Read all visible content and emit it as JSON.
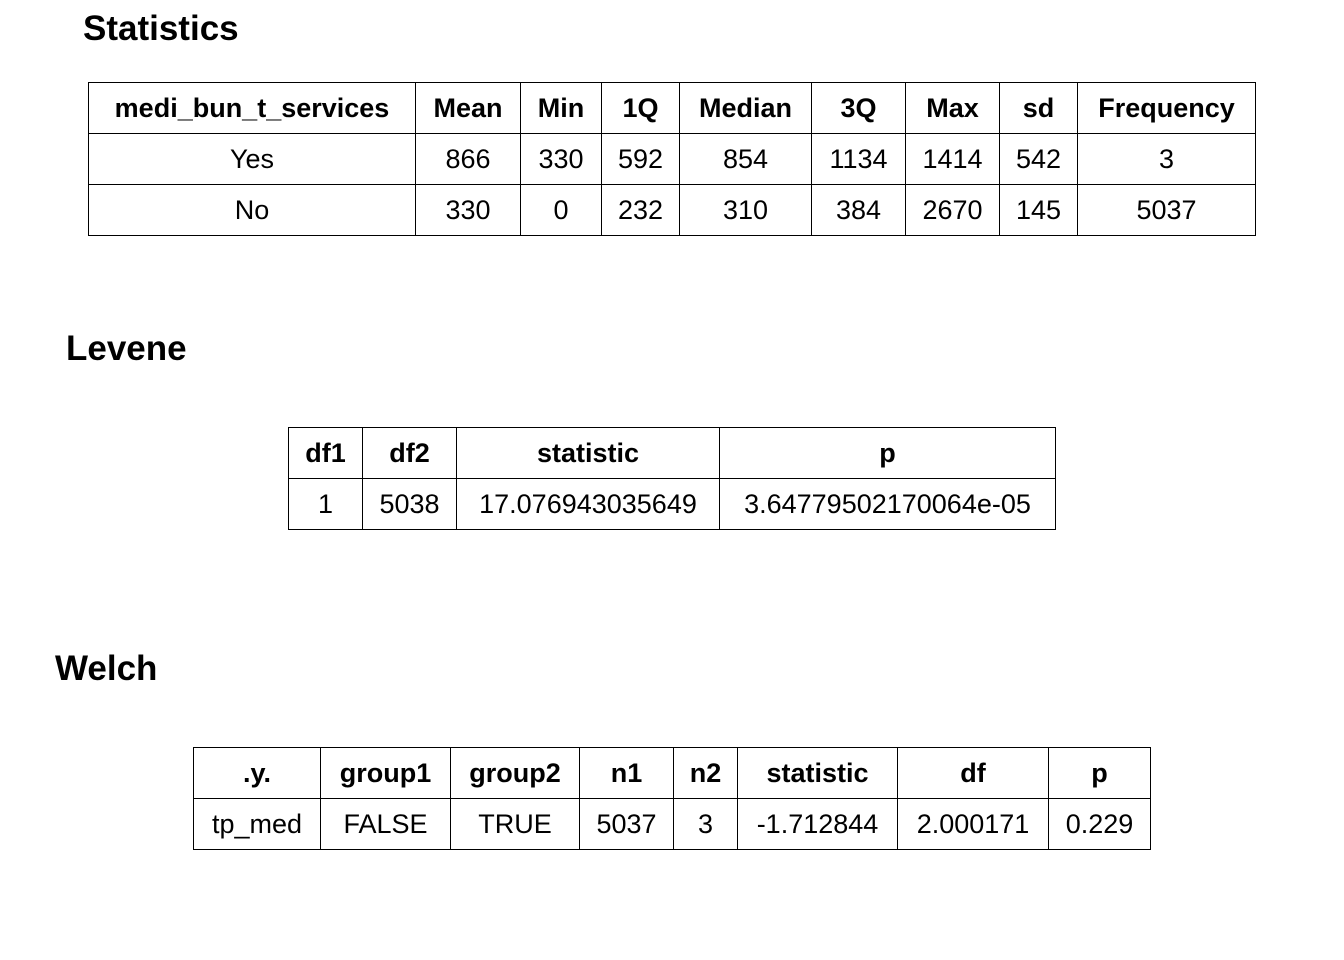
{
  "sections": [
    {
      "title": "Statistics",
      "table": {
        "header": [
          "medi_bun_t_services",
          "Mean",
          "Min",
          "1Q",
          "Median",
          "3Q",
          "Max",
          "sd",
          "Frequency"
        ],
        "rows": [
          [
            "Yes",
            "866",
            "330",
            "592",
            "854",
            "1134",
            "1414",
            "542",
            "3"
          ],
          [
            "No",
            "330",
            "0",
            "232",
            "310",
            "384",
            "2670",
            "145",
            "5037"
          ]
        ]
      }
    },
    {
      "title": "Levene",
      "table": {
        "header": [
          "df1",
          "df2",
          "statistic",
          "p"
        ],
        "rows": [
          [
            "1",
            "5038",
            "17.076943035649",
            "3.64779502170064e-05"
          ]
        ]
      }
    },
    {
      "title": "Welch",
      "table": {
        "header": [
          ".y.",
          "group1",
          "group2",
          "n1",
          "n2",
          "statistic",
          "df",
          "p"
        ],
        "rows": [
          [
            "tp_med",
            "FALSE",
            "TRUE",
            "5037",
            "3",
            "-1.712844",
            "2.000171",
            "0.229"
          ]
        ]
      }
    }
  ]
}
